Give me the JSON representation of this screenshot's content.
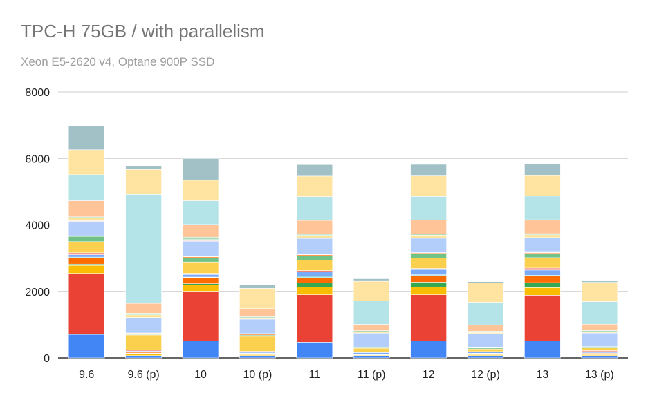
{
  "chart_data": {
    "type": "bar",
    "stacked": true,
    "title": "TPC-H 75GB / with parallelism",
    "subtitle": "Xeon E5-2620 v4, Optane 900P SSD",
    "xlabel": "",
    "ylabel": "",
    "ylim": [
      0,
      8000
    ],
    "yticks": [
      "0",
      "2000",
      "4000",
      "6000",
      "8000"
    ],
    "ytick_values": [
      0,
      2000,
      4000,
      6000,
      8000
    ],
    "grid": true,
    "legend": "none",
    "categories": [
      "9.6",
      "9.6 (p)",
      "10",
      "10 (p)",
      "11",
      "11 (p)",
      "12",
      "12 (p)",
      "13",
      "13 (p)"
    ],
    "series": [
      {
        "color": "#4285f4",
        "values": [
          706,
          48,
          513,
          48,
          471,
          48,
          513,
          48,
          513,
          48
        ]
      },
      {
        "color": "#ea4335",
        "values": [
          1835,
          20,
          1490,
          20,
          1427,
          20,
          1385,
          20,
          1370,
          20
        ]
      },
      {
        "color": "#fbbc04",
        "values": [
          240,
          60,
          187,
          30,
          229,
          20,
          229,
          30,
          229,
          30
        ]
      },
      {
        "color": "#34a853",
        "values": [
          40,
          10,
          40,
          10,
          132,
          10,
          150,
          10,
          150,
          10
        ]
      },
      {
        "color": "#ff6d01",
        "values": [
          190,
          30,
          188,
          20,
          159,
          10,
          203,
          20,
          203,
          30
        ]
      },
      {
        "color": "#46bdc6",
        "values": [
          20,
          20,
          12,
          10,
          35,
          10,
          20,
          10,
          20,
          10
        ]
      },
      {
        "color": "#7baaf7",
        "values": [
          75,
          20,
          79,
          30,
          139,
          40,
          157,
          40,
          157,
          40
        ]
      },
      {
        "color": "#f07b72",
        "values": [
          56,
          30,
          34,
          30,
          34,
          10,
          34,
          10,
          60,
          30
        ]
      },
      {
        "color": "#fcd04f",
        "values": [
          333,
          450,
          341,
          450,
          312,
          120,
          312,
          80,
          312,
          80
        ]
      },
      {
        "color": "#71c287",
        "values": [
          160,
          20,
          116,
          35,
          125,
          20,
          125,
          30,
          125,
          20
        ]
      },
      {
        "color": "#ff994d",
        "values": [
          10,
          30,
          42,
          35,
          41,
          10,
          30,
          10,
          30,
          10
        ]
      },
      {
        "color": "#7ed1d7",
        "values": [
          10,
          10,
          10,
          10,
          10,
          10,
          10,
          10,
          10,
          10
        ]
      },
      {
        "color": "#b3cefb",
        "values": [
          430,
          460,
          455,
          437,
          478,
          415,
          430,
          410,
          430,
          410
        ]
      },
      {
        "color": "#f7b4ae",
        "values": [
          20,
          5,
          20,
          5,
          10,
          5,
          10,
          5,
          10,
          5
        ]
      },
      {
        "color": "#fde49b",
        "values": [
          90,
          80,
          28,
          33,
          84,
          30,
          84,
          30,
          84,
          30
        ]
      },
      {
        "color": "#aedcba",
        "values": [
          27,
          50,
          77,
          36,
          35,
          40,
          35,
          40,
          35,
          40
        ]
      },
      {
        "color": "#ffc599",
        "values": [
          485,
          297,
          380,
          242,
          415,
          190,
          415,
          190,
          415,
          190
        ]
      },
      {
        "color": "#b5e4e8",
        "values": [
          783,
          3278,
          714,
          0,
          714,
          707,
          714,
          680,
          714,
          680
        ]
      },
      {
        "color": "#fee4a0",
        "values": [
          749,
          749,
          617,
          610,
          617,
          588,
          617,
          580,
          617,
          580
        ]
      },
      {
        "color": "#a2c1c6",
        "values": [
          712,
          97,
          657,
          112,
          346,
          77,
          346,
          40,
          346,
          40
        ]
      }
    ]
  }
}
